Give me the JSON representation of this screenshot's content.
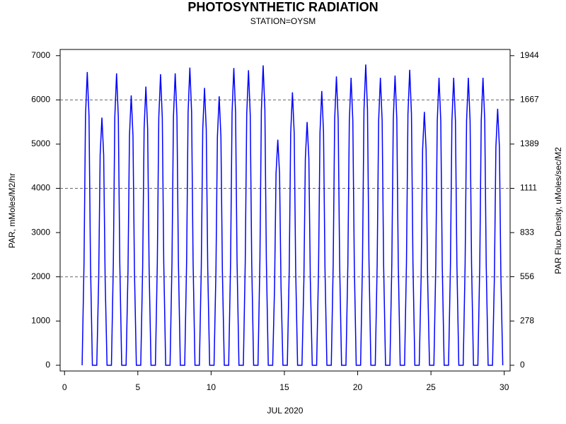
{
  "chart_data": {
    "type": "line",
    "title": "PHOTOSYNTHETIC RADIATION",
    "subtitle": "STATION=OYSM",
    "xlabel": "JUL 2020",
    "ylabel": "PAR, mMoles/M2/hr",
    "y2label": "PAR Flux Density, uMoles/sec/M2",
    "color": "#0000ff",
    "xlim": [
      -0.3,
      30.4
    ],
    "xticks": [
      0,
      5,
      10,
      15,
      20,
      25,
      30
    ],
    "ylim": [
      -130,
      7140
    ],
    "yticks": [
      0,
      1000,
      2000,
      3000,
      4000,
      5000,
      6000,
      7000
    ],
    "y2lim": [
      -36,
      1983
    ],
    "y2ticks": [
      0,
      278,
      556,
      833,
      1111,
      1389,
      1667,
      1944
    ],
    "grid_values": [
      2000,
      4000,
      6000
    ],
    "x": [
      1.2,
      1.33,
      1.43,
      1.55,
      1.67,
      1.77,
      1.9,
      2.2,
      2.33,
      2.43,
      2.55,
      2.67,
      2.77,
      2.9,
      3.2,
      3.33,
      3.43,
      3.55,
      3.67,
      3.77,
      3.9,
      4.2,
      4.33,
      4.43,
      4.55,
      4.67,
      4.77,
      4.9,
      5.2,
      5.33,
      5.43,
      5.55,
      5.67,
      5.77,
      5.9,
      6.2,
      6.33,
      6.43,
      6.55,
      6.67,
      6.77,
      6.9,
      7.2,
      7.33,
      7.43,
      7.55,
      7.67,
      7.77,
      7.9,
      8.2,
      8.33,
      8.43,
      8.55,
      8.67,
      8.77,
      8.9,
      9.2,
      9.33,
      9.43,
      9.55,
      9.67,
      9.77,
      9.9,
      10.2,
      10.33,
      10.43,
      10.55,
      10.67,
      10.77,
      10.9,
      11.2,
      11.33,
      11.43,
      11.55,
      11.67,
      11.77,
      11.9,
      12.2,
      12.33,
      12.43,
      12.55,
      12.67,
      12.77,
      12.9,
      13.2,
      13.33,
      13.43,
      13.55,
      13.67,
      13.77,
      13.9,
      14.2,
      14.33,
      14.43,
      14.55,
      14.67,
      14.77,
      14.9,
      15.2,
      15.33,
      15.43,
      15.55,
      15.67,
      15.77,
      15.9,
      16.2,
      16.33,
      16.43,
      16.55,
      16.67,
      16.77,
      16.9,
      17.2,
      17.33,
      17.43,
      17.55,
      17.67,
      17.77,
      17.9,
      18.2,
      18.33,
      18.43,
      18.55,
      18.67,
      18.77,
      18.9,
      19.2,
      19.33,
      19.43,
      19.55,
      19.67,
      19.77,
      19.9,
      20.2,
      20.33,
      20.43,
      20.55,
      20.67,
      20.77,
      20.9,
      21.2,
      21.33,
      21.43,
      21.55,
      21.67,
      21.77,
      21.9,
      22.2,
      22.33,
      22.43,
      22.55,
      22.67,
      22.77,
      22.9,
      23.2,
      23.33,
      23.43,
      23.55,
      23.67,
      23.77,
      23.9,
      24.2,
      24.33,
      24.43,
      24.55,
      24.67,
      24.77,
      24.9,
      25.2,
      25.33,
      25.43,
      25.55,
      25.67,
      25.77,
      25.9,
      26.2,
      26.33,
      26.43,
      26.55,
      26.67,
      26.77,
      26.9,
      27.2,
      27.33,
      27.43,
      27.55,
      27.67,
      27.77,
      27.9,
      28.2,
      28.33,
      28.43,
      28.55,
      28.67,
      28.77,
      28.9,
      29.2,
      29.33,
      29.43,
      29.55,
      29.67,
      29.77,
      29.9
    ],
    "values": [
      0,
      2321,
      5636,
      6630,
      5636,
      2321,
      0,
      0,
      1960,
      4760,
      5600,
      4760,
      1960,
      0,
      0,
      2310,
      5610,
      6600,
      5610,
      2310,
      0,
      0,
      2135,
      5185,
      6100,
      5185,
      2135,
      0,
      0,
      2205,
      5355,
      6300,
      5355,
      2205,
      0,
      0,
      2303,
      5593,
      6580,
      5593,
      2303,
      0,
      0,
      2310,
      5610,
      6600,
      5610,
      2310,
      0,
      0,
      2356,
      5721,
      6730,
      5721,
      2356,
      0,
      0,
      2195,
      5330,
      6270,
      5330,
      2195,
      0,
      0,
      2128,
      5168,
      6080,
      5168,
      2128,
      0,
      0,
      2352,
      5712,
      6720,
      5712,
      2352,
      0,
      0,
      2335,
      5670,
      6670,
      5670,
      2335,
      0,
      0,
      2373,
      5763,
      6780,
      5763,
      2373,
      0,
      0,
      1785,
      4335,
      5100,
      4335,
      1785,
      0,
      0,
      2160,
      5245,
      6170,
      5245,
      2160,
      0,
      0,
      1925,
      4675,
      5500,
      4675,
      1925,
      0,
      0,
      2170,
      5270,
      6200,
      5270,
      2170,
      0,
      0,
      2286,
      5551,
      6530,
      5551,
      2286,
      0,
      0,
      2275,
      5525,
      6500,
      5525,
      2275,
      0,
      0,
      2380,
      5780,
      6800,
      5780,
      2380,
      0,
      0,
      2275,
      5525,
      6500,
      5525,
      2275,
      0,
      0,
      2293,
      5568,
      6550,
      5568,
      2293,
      0,
      0,
      2338,
      5678,
      6680,
      5678,
      2338,
      0,
      0,
      2006,
      4871,
      5730,
      4871,
      2006,
      0,
      0,
      2275,
      5525,
      6500,
      5525,
      2275,
      0,
      0,
      2275,
      5525,
      6500,
      5525,
      2275,
      0,
      0,
      2275,
      5525,
      6500,
      5525,
      2275,
      0,
      0,
      2275,
      5525,
      6500,
      5525,
      2275,
      0,
      0,
      2030,
      4930,
      5800,
      4930,
      2030,
      0
    ]
  }
}
